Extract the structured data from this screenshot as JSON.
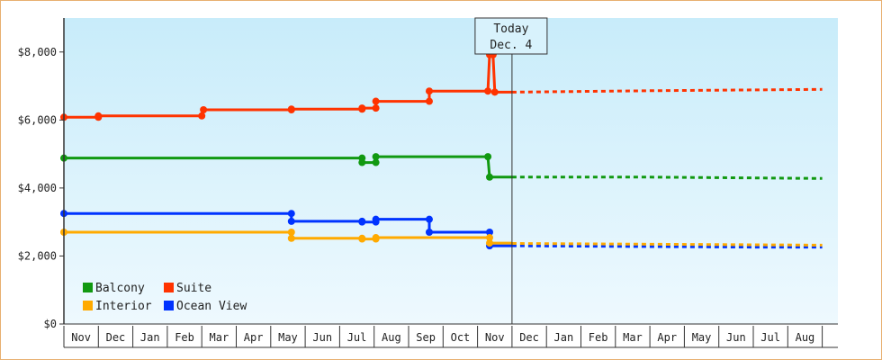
{
  "chart_data": {
    "type": "line",
    "title": "",
    "xlabel": "",
    "ylabel": "",
    "ylim": [
      0,
      9000
    ],
    "yticks": [
      0,
      2000,
      4000,
      6000,
      8000
    ],
    "ytick_labels": [
      "$0",
      "$2,000",
      "$4,000",
      "$6,000",
      "$8,000"
    ],
    "xticks": [
      "Nov",
      "Dec",
      "Jan",
      "Feb",
      "Mar",
      "Apr",
      "May",
      "Jun",
      "Jul",
      "Aug",
      "Sep",
      "Oct",
      "Nov",
      "Dec",
      "Jan",
      "Feb",
      "Mar",
      "Apr",
      "May",
      "Jun",
      "Jul",
      "Aug"
    ],
    "x_unit": "month",
    "today_index": 13.0,
    "today_label_line1": "Today",
    "today_label_line2": "Dec. 4",
    "legend_position": "bottom-left",
    "grid": false,
    "background_gradient": [
      "#c8ecfa",
      "#eef9fe"
    ],
    "series": [
      {
        "name": "Suite",
        "color": "#ff3300",
        "points": [
          [
            0,
            6080
          ],
          [
            1.0,
            6080
          ],
          [
            1.0,
            6120
          ],
          [
            4.0,
            6120
          ],
          [
            4.05,
            6300
          ],
          [
            6.6,
            6300
          ],
          [
            6.6,
            6320
          ],
          [
            8.65,
            6320
          ],
          [
            8.65,
            6350
          ],
          [
            9.05,
            6350
          ],
          [
            9.05,
            6550
          ],
          [
            10.6,
            6550
          ],
          [
            10.6,
            6850
          ],
          [
            12.3,
            6850
          ],
          [
            12.35,
            7920
          ],
          [
            12.45,
            7920
          ],
          [
            12.5,
            6820
          ],
          [
            13.0,
            6820
          ]
        ],
        "forecast": [
          [
            13.0,
            6820
          ],
          [
            17.0,
            6860
          ],
          [
            22.0,
            6900
          ]
        ]
      },
      {
        "name": "Balcony",
        "color": "#119911",
        "points": [
          [
            0,
            4880
          ],
          [
            8.65,
            4880
          ],
          [
            8.65,
            4750
          ],
          [
            9.05,
            4750
          ],
          [
            9.05,
            4920
          ],
          [
            10.6,
            4920
          ],
          [
            12.3,
            4920
          ],
          [
            12.35,
            4320
          ],
          [
            13.0,
            4320
          ]
        ],
        "forecast": [
          [
            13.0,
            4320
          ],
          [
            17.0,
            4320
          ],
          [
            22.0,
            4280
          ]
        ]
      },
      {
        "name": "Ocean View",
        "color": "#0033ff",
        "points": [
          [
            0,
            3250
          ],
          [
            6.6,
            3250
          ],
          [
            6.6,
            3020
          ],
          [
            8.65,
            3020
          ],
          [
            8.65,
            3000
          ],
          [
            9.05,
            3000
          ],
          [
            9.05,
            3080
          ],
          [
            10.6,
            3080
          ],
          [
            10.6,
            2700
          ],
          [
            12.35,
            2700
          ],
          [
            12.35,
            2300
          ],
          [
            13.0,
            2300
          ]
        ],
        "forecast": [
          [
            13.0,
            2300
          ],
          [
            20.0,
            2260
          ],
          [
            22.0,
            2260
          ]
        ]
      },
      {
        "name": "Interior",
        "color": "#ffaa00",
        "points": [
          [
            0,
            2700
          ],
          [
            6.6,
            2700
          ],
          [
            6.6,
            2520
          ],
          [
            8.65,
            2520
          ],
          [
            8.65,
            2500
          ],
          [
            9.05,
            2500
          ],
          [
            9.05,
            2540
          ],
          [
            10.6,
            2540
          ],
          [
            12.35,
            2540
          ],
          [
            12.35,
            2380
          ],
          [
            13.0,
            2380
          ]
        ],
        "forecast": [
          [
            13.0,
            2370
          ],
          [
            22.0,
            2320
          ]
        ]
      }
    ],
    "legend": [
      {
        "name": "Balcony",
        "color": "#119911"
      },
      {
        "name": "Suite",
        "color": "#ff3300"
      },
      {
        "name": "Interior",
        "color": "#ffaa00"
      },
      {
        "name": "Ocean View",
        "color": "#0033ff"
      }
    ]
  }
}
